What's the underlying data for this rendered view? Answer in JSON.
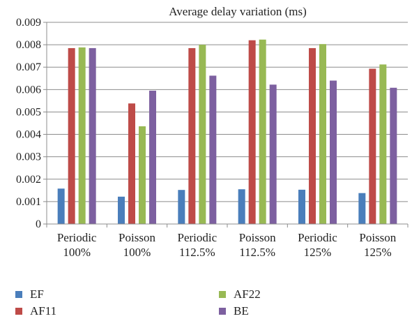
{
  "chart_data": {
    "type": "bar",
    "title": "Average delay variation (ms)",
    "xlabel": "",
    "ylabel": "",
    "ylim": [
      0,
      0.009
    ],
    "yticks": [
      "0",
      "0.001",
      "0.002",
      "0.003",
      "0.004",
      "0.005",
      "0.006",
      "0.007",
      "0.008",
      "0.009"
    ],
    "grid": true,
    "legend_position": "bottom",
    "categories": [
      [
        "Periodic",
        "100%"
      ],
      [
        "Poisson",
        "100%"
      ],
      [
        "Periodic",
        "112.5%"
      ],
      [
        "Poisson",
        "112.5%"
      ],
      [
        "Periodic",
        "125%"
      ],
      [
        "Poisson",
        "125%"
      ]
    ],
    "series": [
      {
        "name": "EF",
        "color": "#4a7ebb",
        "values": [
          0.00158,
          0.00122,
          0.00152,
          0.00155,
          0.00153,
          0.00138
        ]
      },
      {
        "name": "AF11",
        "color": "#be4b48",
        "values": [
          0.00785,
          0.00538,
          0.00785,
          0.0082,
          0.00785,
          0.00693
        ]
      },
      {
        "name": "AF22",
        "color": "#98b954",
        "values": [
          0.00788,
          0.00436,
          0.008,
          0.00823,
          0.00803,
          0.00712
        ]
      },
      {
        "name": "BE",
        "color": "#7d60a0",
        "values": [
          0.00785,
          0.00595,
          0.00662,
          0.00622,
          0.0064,
          0.00608
        ]
      }
    ]
  }
}
